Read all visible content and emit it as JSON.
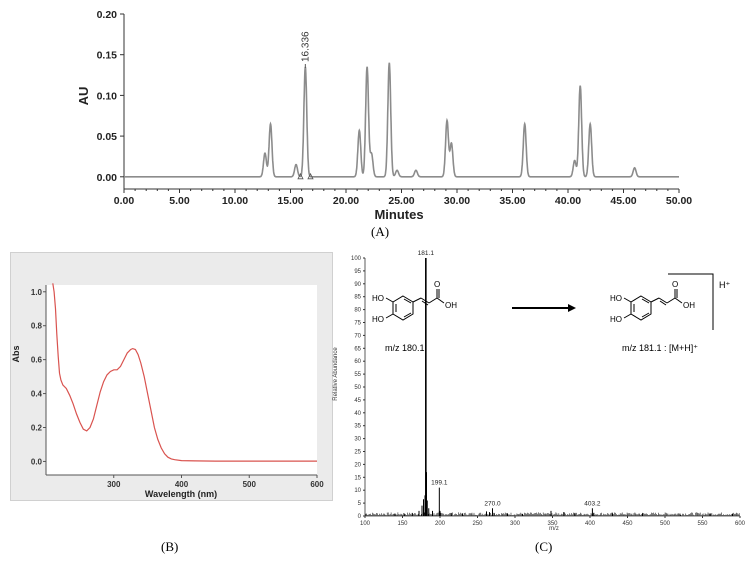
{
  "chart_data": [
    {
      "type": "line",
      "panel_label": "(A)",
      "xlabel": "Minutes",
      "ylabel": "AU",
      "xlim": [
        0,
        50
      ],
      "ylim": [
        -0.015,
        0.2
      ],
      "x_ticks": [
        "0.00",
        "5.00",
        "10.00",
        "15.00",
        "20.00",
        "25.00",
        "30.00",
        "35.00",
        "40.00",
        "45.00",
        "50.00"
      ],
      "y_ticks": [
        "0.00",
        "0.05",
        "0.10",
        "0.15",
        "0.20"
      ],
      "grid": false,
      "peak_annotation": {
        "text": "16.336",
        "x": 16.336
      },
      "color": "#8c8c8c",
      "peaks": [
        {
          "x": 12.7,
          "y": 0.029
        },
        {
          "x": 13.2,
          "y": 0.065
        },
        {
          "x": 15.5,
          "y": 0.015
        },
        {
          "x": 16.336,
          "y": 0.135
        },
        {
          "x": 21.2,
          "y": 0.057
        },
        {
          "x": 21.9,
          "y": 0.135
        },
        {
          "x": 22.3,
          "y": 0.028
        },
        {
          "x": 23.9,
          "y": 0.14
        },
        {
          "x": 24.6,
          "y": 0.008
        },
        {
          "x": 26.3,
          "y": 0.008
        },
        {
          "x": 29.1,
          "y": 0.069
        },
        {
          "x": 29.5,
          "y": 0.041
        },
        {
          "x": 36.1,
          "y": 0.065
        },
        {
          "x": 40.6,
          "y": 0.02
        },
        {
          "x": 41.1,
          "y": 0.112
        },
        {
          "x": 42.0,
          "y": 0.065
        },
        {
          "x": 46.0,
          "y": 0.011
        }
      ]
    },
    {
      "type": "line",
      "panel_label": "(B)",
      "xlabel": "Wavelength (nm)",
      "ylabel": "Abs",
      "xlim": [
        200,
        600
      ],
      "ylim": [
        -0.08,
        1.04
      ],
      "x_ticks": [
        "300",
        "400",
        "500",
        "600"
      ],
      "y_ticks": [
        "0.0",
        "0.2",
        "0.4",
        "0.6",
        "0.8",
        "1.0"
      ],
      "color": "#d9534f",
      "x": [
        210,
        212,
        214,
        216,
        218,
        220,
        222,
        225,
        230,
        235,
        240,
        245,
        250,
        255,
        260,
        265,
        270,
        275,
        280,
        285,
        290,
        295,
        300,
        305,
        310,
        315,
        320,
        325,
        328,
        332,
        336,
        340,
        345,
        350,
        355,
        360,
        365,
        370,
        375,
        380,
        385,
        390,
        400,
        420,
        450,
        500,
        550,
        600
      ],
      "y": [
        1.05,
        1.0,
        0.9,
        0.75,
        0.62,
        0.52,
        0.48,
        0.45,
        0.43,
        0.39,
        0.34,
        0.28,
        0.23,
        0.19,
        0.18,
        0.2,
        0.25,
        0.33,
        0.41,
        0.47,
        0.51,
        0.53,
        0.54,
        0.54,
        0.56,
        0.6,
        0.64,
        0.66,
        0.665,
        0.66,
        0.63,
        0.58,
        0.5,
        0.4,
        0.3,
        0.2,
        0.13,
        0.08,
        0.045,
        0.025,
        0.015,
        0.01,
        0.005,
        0.003,
        0.002,
        0.002,
        0.002,
        0.002
      ]
    },
    {
      "type": "bar",
      "panel_label": "(C)",
      "xlabel": "m/z",
      "ylabel": "Relative Abundance",
      "xlim": [
        100,
        600
      ],
      "ylim": [
        0,
        100
      ],
      "x_ticks": [
        "100",
        "150",
        "200",
        "250",
        "300",
        "350",
        "400",
        "450",
        "500",
        "550",
        "600"
      ],
      "y_ticks": [
        "0",
        "5",
        "10",
        "15",
        "20",
        "25",
        "30",
        "35",
        "40",
        "45",
        "50",
        "55",
        "60",
        "65",
        "70",
        "75",
        "80",
        "85",
        "90",
        "95",
        "100"
      ],
      "peak_labels": [
        {
          "text": "181.1",
          "x": 181.1,
          "y": 100
        },
        {
          "text": "199.1",
          "x": 199.1,
          "y": 11
        },
        {
          "text": "270.0",
          "x": 270.0,
          "y": 3
        },
        {
          "text": "403.2",
          "x": 403.2,
          "y": 3
        }
      ],
      "x": [
        140,
        152,
        163,
        172,
        176,
        178,
        180,
        181.1,
        182,
        183,
        185,
        190,
        199.1,
        200,
        215,
        230,
        262,
        266,
        270.0,
        272,
        290,
        310,
        348,
        365,
        380,
        403.2,
        405,
        430,
        470,
        520,
        560,
        590
      ],
      "y": [
        0.8,
        1.0,
        1.2,
        2.0,
        4.0,
        6.5,
        8.0,
        100,
        17.0,
        6.0,
        3.0,
        2.0,
        11.0,
        2.0,
        1.2,
        1.0,
        1.8,
        1.5,
        3.0,
        1.2,
        1.0,
        0.8,
        2.0,
        1.5,
        1.2,
        3.0,
        1.2,
        1.0,
        1.0,
        0.9,
        0.9,
        0.9
      ],
      "annotations": {
        "reactant_label": "m/z 180.1",
        "product_label": "m/z 181.1 : [M+H]⁺",
        "charge_label": "H⁺",
        "atom_ho_top": "HO",
        "atom_ho_bottom": "HO",
        "atom_o": "O",
        "atom_oh": "OH"
      }
    }
  ]
}
